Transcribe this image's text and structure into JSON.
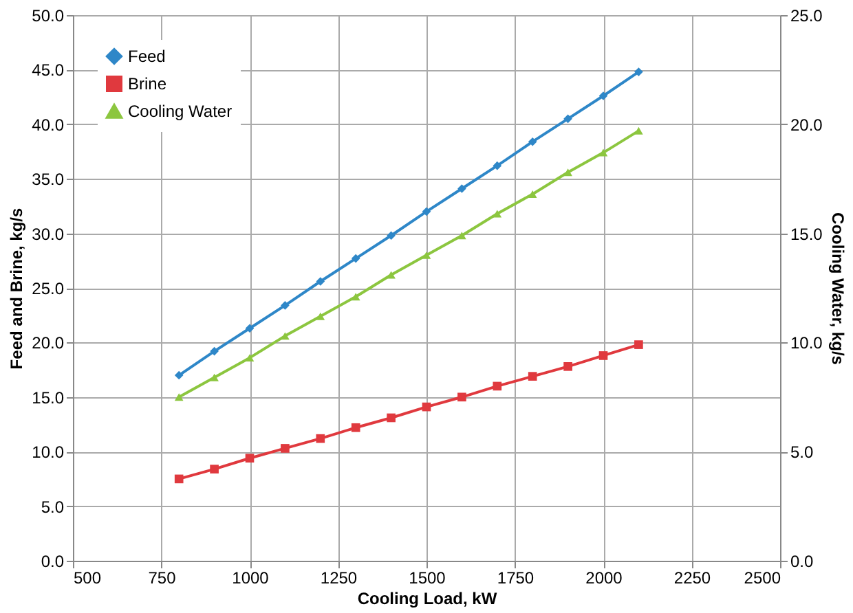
{
  "chart_data": {
    "type": "line",
    "xlabel": "Cooling Load, kW",
    "ylabel": "Feed and Brine, kg/s",
    "y2label": "Cooling Water, kg/s",
    "x": [
      800,
      900,
      1000,
      1100,
      1200,
      1300,
      1400,
      1500,
      1600,
      1700,
      1800,
      1900,
      2000,
      2100
    ],
    "series": [
      {
        "name": "Feed",
        "color": "#2e87c8",
        "marker": "diamond",
        "values": [
          17.0,
          19.2,
          21.3,
          23.4,
          25.6,
          27.7,
          29.8,
          32.0,
          34.1,
          36.2,
          38.4,
          40.5,
          42.6,
          44.8
        ]
      },
      {
        "name": "Brine",
        "color": "#e0393e",
        "marker": "square",
        "values": [
          7.5,
          8.4,
          9.4,
          10.3,
          11.2,
          12.2,
          13.1,
          14.1,
          15.0,
          16.0,
          16.9,
          17.8,
          18.8,
          19.8
        ]
      },
      {
        "name": "Cooling Water",
        "color": "#8cc63f",
        "marker": "triangle",
        "axis": "y2",
        "values": [
          7.5,
          8.4,
          9.3,
          10.3,
          11.2,
          12.1,
          13.1,
          14.0,
          14.9,
          15.9,
          16.8,
          17.8,
          18.7,
          19.7
        ]
      }
    ],
    "xlim": [
      500,
      2500
    ],
    "xticks": [
      500,
      750,
      1000,
      1250,
      1500,
      1750,
      2000,
      2250,
      2500
    ],
    "ylim": [
      0,
      50
    ],
    "yticks": [
      {
        "value": 0,
        "label": "0.0"
      },
      {
        "value": 5,
        "label": "5.0"
      },
      {
        "value": 10,
        "label": "10.0"
      },
      {
        "value": 15,
        "label": "15.0"
      },
      {
        "value": 20,
        "label": "20.0"
      },
      {
        "value": 25,
        "label": "25.0"
      },
      {
        "value": 30,
        "label": "30.0"
      },
      {
        "value": 35,
        "label": "35.0"
      },
      {
        "value": 40,
        "label": "40.0"
      },
      {
        "value": 45,
        "label": "45.0"
      },
      {
        "value": 50,
        "label": "50.0"
      }
    ],
    "y2lim": [
      0,
      25
    ],
    "y2ticks": [
      {
        "value": 0,
        "label": "0.0"
      },
      {
        "value": 5,
        "label": "5.0"
      },
      {
        "value": 10,
        "label": "10.0"
      },
      {
        "value": 15,
        "label": "15.0"
      },
      {
        "value": 20,
        "label": "20.0"
      },
      {
        "value": 25,
        "label": "25.0"
      }
    ],
    "grid": true,
    "legend": "top left",
    "line_style": "solid"
  }
}
